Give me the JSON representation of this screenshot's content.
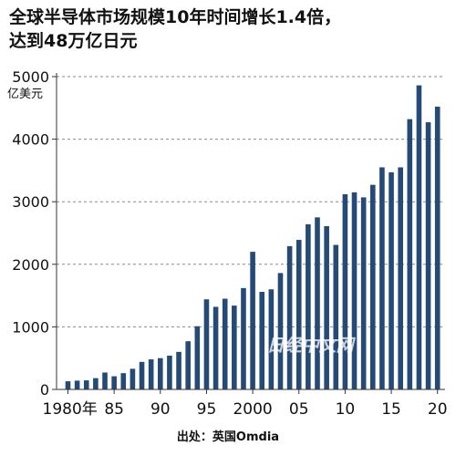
{
  "chart_data": {
    "type": "bar",
    "title": "全球半导体市场规模10年时间增长1.4倍，\n达到48万亿日元",
    "ylabel": "亿美元",
    "xlabel": "",
    "source": "出处：英国Omdia",
    "watermark": "日经中文网",
    "bar_color": "#244a75",
    "ylim": [
      0,
      5000
    ],
    "yticks": [
      0,
      1000,
      2000,
      3000,
      4000,
      5000
    ],
    "years": [
      1980,
      1981,
      1982,
      1983,
      1984,
      1985,
      1986,
      1987,
      1988,
      1989,
      1990,
      1991,
      1992,
      1993,
      1994,
      1995,
      1996,
      1997,
      1998,
      1999,
      2000,
      2001,
      2002,
      2003,
      2004,
      2005,
      2006,
      2007,
      2008,
      2009,
      2010,
      2011,
      2012,
      2013,
      2014,
      2015,
      2016,
      2017,
      2018,
      2019,
      2020
    ],
    "values": [
      130,
      140,
      145,
      180,
      270,
      210,
      260,
      330,
      440,
      480,
      500,
      540,
      600,
      770,
      1010,
      1440,
      1320,
      1450,
      1340,
      1620,
      2200,
      1560,
      1600,
      1860,
      2290,
      2390,
      2640,
      2750,
      2610,
      2310,
      3120,
      3150,
      3070,
      3270,
      3550,
      3470,
      3550,
      4320,
      4860,
      4270,
      4520
    ],
    "x_tick_labels": [
      {
        "year": 1980,
        "label": "1980年"
      },
      {
        "year": 1985,
        "label": "85"
      },
      {
        "year": 1990,
        "label": "90"
      },
      {
        "year": 1995,
        "label": "95"
      },
      {
        "year": 2000,
        "label": "2000"
      },
      {
        "year": 2005,
        "label": "05"
      },
      {
        "year": 2010,
        "label": "10"
      },
      {
        "year": 2015,
        "label": "15"
      },
      {
        "year": 2020,
        "label": "20"
      }
    ],
    "grid": "horizontal-dashed"
  }
}
